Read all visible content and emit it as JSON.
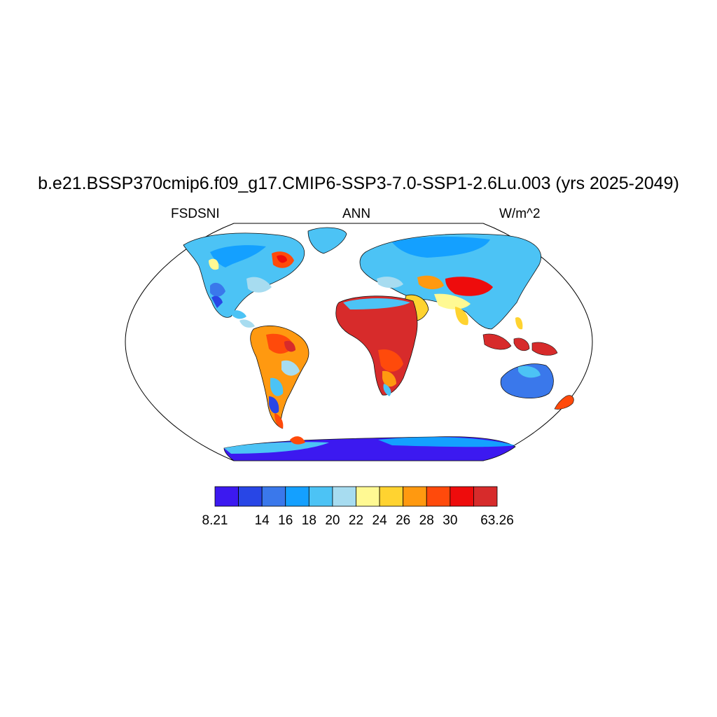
{
  "title": "b.e21.BSSP370cmip6.f09_g17.CMIP6-SSP3-7.0-SSP1-2.6Lu.003 (yrs 2025-2049)",
  "left_label": "FSDSNI",
  "center_label": "ANN",
  "right_label": "W/m^2",
  "colorbar": {
    "colors": [
      "#3c19f0",
      "#2846e6",
      "#3a78eb",
      "#14a0ff",
      "#4cc3f5",
      "#a7dcf0",
      "#fff993",
      "#ffd330",
      "#ff9910",
      "#ff4a0b",
      "#ee0c0c",
      "#d72b2b"
    ],
    "labels": [
      "8.21",
      "14",
      "16",
      "18",
      "20",
      "22",
      "24",
      "26",
      "28",
      "30",
      "63.26"
    ],
    "label_boundaries": [
      0,
      2,
      3,
      4,
      5,
      6,
      7,
      8,
      9,
      10,
      12
    ]
  },
  "map": {
    "projection": "Robinson",
    "variable": "FSDSNI",
    "units": "W/m^2"
  }
}
